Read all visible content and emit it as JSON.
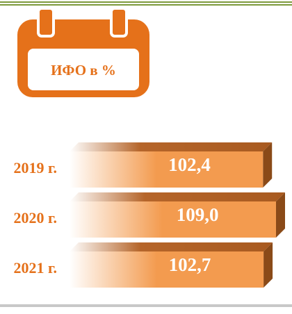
{
  "chart_data": {
    "type": "bar",
    "title": "ИФО в %",
    "categories": [
      "2019 г.",
      "2020 г.",
      "2021 г."
    ],
    "values": [
      102.4,
      109.0,
      102.7
    ],
    "value_labels": [
      "102,4",
      "109,0",
      "102,7"
    ],
    "color": "#f39b4f"
  }
}
